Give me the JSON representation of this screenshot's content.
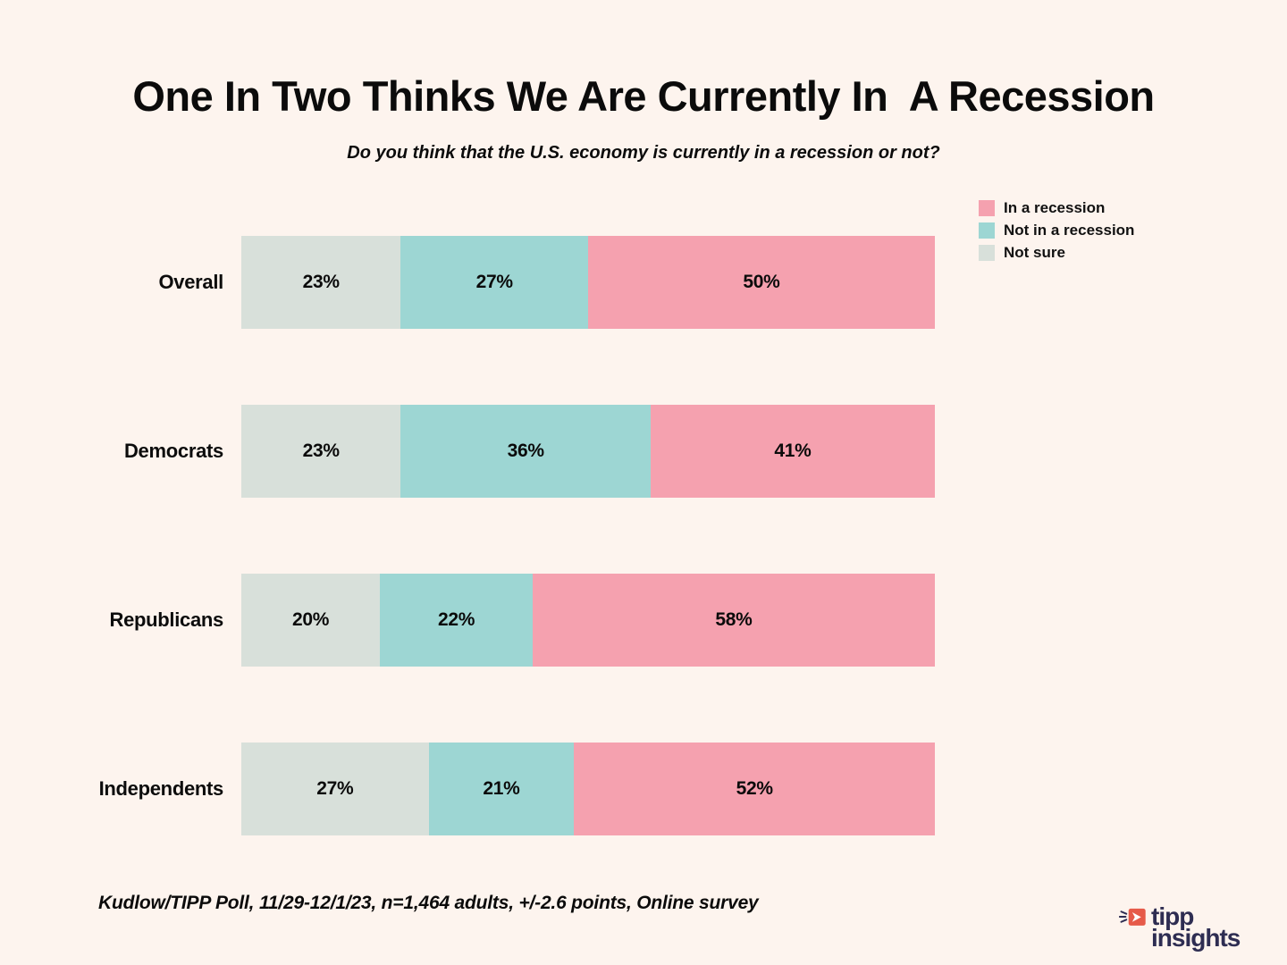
{
  "header": {
    "title": "One In Two Thinks We Are Currently In  A Recession",
    "subtitle": "Do you think that the U.S. economy is currently in a recession or not?"
  },
  "legend": {
    "items": [
      {
        "label": "In a recession",
        "color": "#F5A1AF"
      },
      {
        "label": "Not in a recession",
        "color": "#9DD6D3"
      },
      {
        "label": "Not sure",
        "color": "#D8E0DA"
      }
    ]
  },
  "chart_data": {
    "type": "bar",
    "orientation": "horizontal-stacked",
    "title": "One In Two Thinks We Are Currently In  A Recession",
    "subtitle": "Do you think that the U.S. economy is currently in a recession or not?",
    "categories": [
      "Overall",
      "Democrats",
      "Republicans",
      "Independents"
    ],
    "series": [
      {
        "name": "Not sure",
        "color": "#D8E0DA",
        "values": [
          23,
          23,
          20,
          27
        ]
      },
      {
        "name": "Not in a recession",
        "color": "#9DD6D3",
        "values": [
          27,
          36,
          22,
          21
        ]
      },
      {
        "name": "In a recession",
        "color": "#F5A1AF",
        "values": [
          50,
          41,
          58,
          52
        ]
      }
    ],
    "value_suffix": "%",
    "xlim": [
      0,
      100
    ],
    "grid": false,
    "legend_position": "top-right",
    "background": "#FDF4EE"
  },
  "footer": {
    "source": "Kudlow/TIPP Poll, 11/29-12/1/23, n=1,464 adults, +/-2.6 points, Online survey"
  },
  "logo": {
    "line1": "tipp",
    "line2": "insights",
    "icon_color": "#E65A49",
    "text_color": "#2E2D52"
  }
}
